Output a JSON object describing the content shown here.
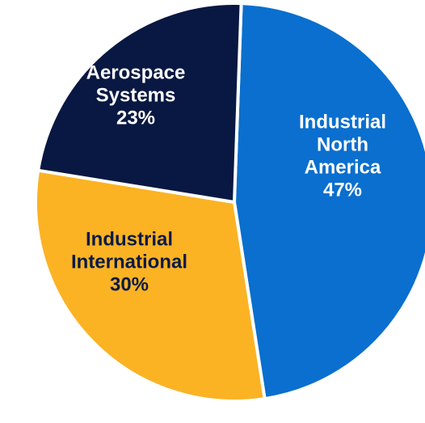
{
  "chart_data": {
    "type": "pie",
    "title": "",
    "slices": [
      {
        "name": "Industrial North America",
        "label_lines": [
          "Industrial",
          "North",
          "America",
          "47%"
        ],
        "value": 47,
        "color": "#0A6FCE",
        "label_color": "#FFFFFF"
      },
      {
        "name": "Industrial International",
        "label_lines": [
          "Industrial",
          "International",
          "30%"
        ],
        "value": 30,
        "color": "#FBB324",
        "label_color": "#0B1A46"
      },
      {
        "name": "Aerospace Systems",
        "label_lines": [
          "Aerospace",
          "Systems",
          "23%"
        ],
        "value": 23,
        "color": "#091842",
        "label_color": "#FFFFFF"
      }
    ],
    "start_angle_deg": 2,
    "direction": "clockwise",
    "slice_border_color": "#FFFFFF"
  }
}
